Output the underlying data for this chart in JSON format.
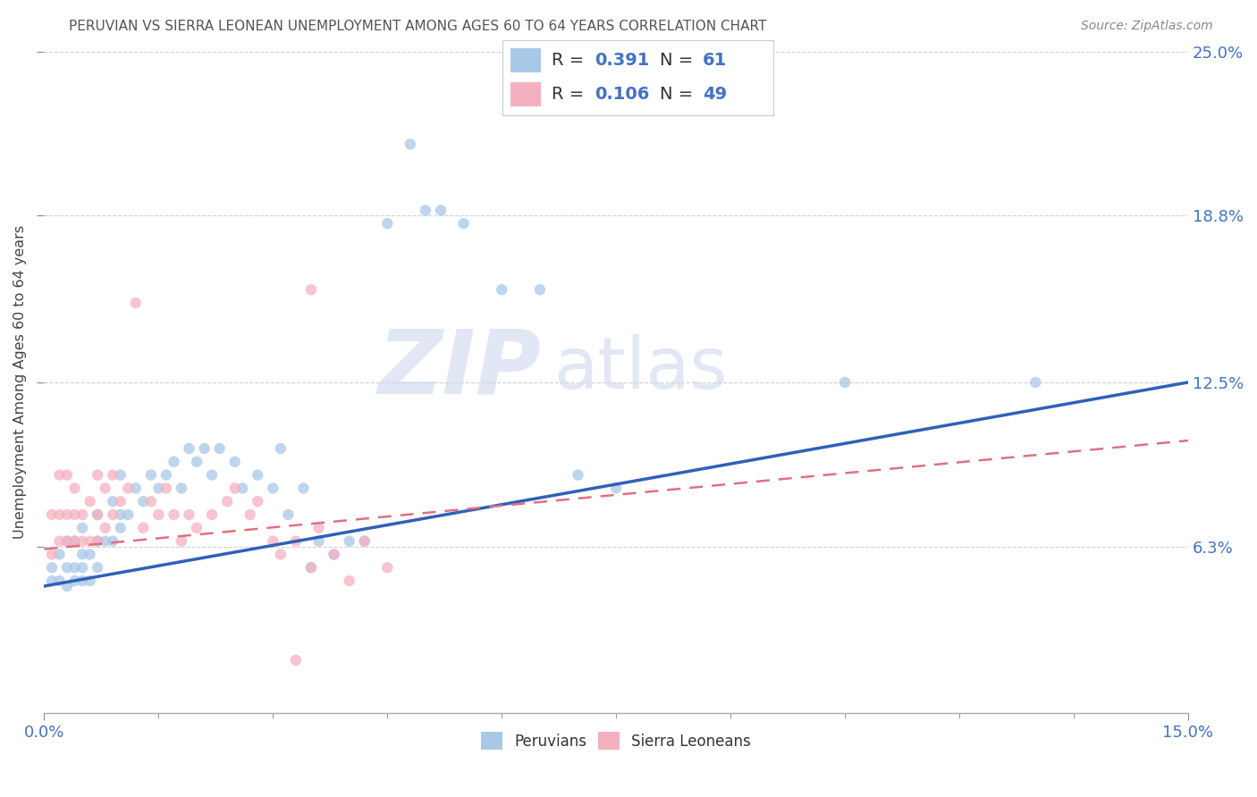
{
  "title": "PERUVIAN VS SIERRA LEONEAN UNEMPLOYMENT AMONG AGES 60 TO 64 YEARS CORRELATION CHART",
  "source": "Source: ZipAtlas.com",
  "ylabel": "Unemployment Among Ages 60 to 64 years",
  "xlim": [
    0.0,
    0.15
  ],
  "ylim": [
    0.0,
    0.25
  ],
  "xtick_positions": [
    0.0,
    0.15
  ],
  "xtick_labels": [
    "0.0%",
    "15.0%"
  ],
  "ytick_values": [
    0.063,
    0.125,
    0.188,
    0.25
  ],
  "ytick_labels": [
    "6.3%",
    "12.5%",
    "18.8%",
    "25.0%"
  ],
  "peruvian_color": "#a8c8e8",
  "sierra_color": "#f5b0c0",
  "peruvian_line_color": "#3060b8",
  "sierra_line_color": "#e07080",
  "R_peruvian": 0.391,
  "N_peruvian": 61,
  "R_sierra": 0.106,
  "N_sierra": 49,
  "label_peruvians": "Peruvians",
  "label_sierra": "Sierra Leoneans",
  "tick_label_color": "#4472c4",
  "title_color": "#555555",
  "source_color": "#888888",
  "background": "#ffffff",
  "grid_color": "#cccccc",
  "peruvian_x": [
    0.001,
    0.001,
    0.002,
    0.002,
    0.003,
    0.003,
    0.003,
    0.004,
    0.004,
    0.004,
    0.005,
    0.005,
    0.005,
    0.005,
    0.006,
    0.006,
    0.007,
    0.007,
    0.007,
    0.008,
    0.009,
    0.009,
    0.01,
    0.01,
    0.01,
    0.011,
    0.012,
    0.013,
    0.014,
    0.015,
    0.016,
    0.017,
    0.018,
    0.019,
    0.02,
    0.021,
    0.022,
    0.023,
    0.025,
    0.026,
    0.028,
    0.03,
    0.031,
    0.032,
    0.034,
    0.035,
    0.036,
    0.038,
    0.04,
    0.042,
    0.045,
    0.048,
    0.05,
    0.052,
    0.055,
    0.06,
    0.065,
    0.07,
    0.075,
    0.105,
    0.13
  ],
  "peruvian_y": [
    0.05,
    0.055,
    0.05,
    0.06,
    0.048,
    0.055,
    0.065,
    0.05,
    0.055,
    0.065,
    0.05,
    0.055,
    0.06,
    0.07,
    0.05,
    0.06,
    0.055,
    0.065,
    0.075,
    0.065,
    0.065,
    0.08,
    0.07,
    0.075,
    0.09,
    0.075,
    0.085,
    0.08,
    0.09,
    0.085,
    0.09,
    0.095,
    0.085,
    0.1,
    0.095,
    0.1,
    0.09,
    0.1,
    0.095,
    0.085,
    0.09,
    0.085,
    0.1,
    0.075,
    0.085,
    0.055,
    0.065,
    0.06,
    0.065,
    0.065,
    0.185,
    0.215,
    0.19,
    0.19,
    0.185,
    0.16,
    0.16,
    0.09,
    0.085,
    0.125,
    0.125
  ],
  "sierra_x": [
    0.001,
    0.001,
    0.002,
    0.002,
    0.002,
    0.003,
    0.003,
    0.003,
    0.004,
    0.004,
    0.004,
    0.005,
    0.005,
    0.006,
    0.006,
    0.007,
    0.007,
    0.007,
    0.008,
    0.008,
    0.009,
    0.009,
    0.01,
    0.011,
    0.012,
    0.013,
    0.014,
    0.015,
    0.016,
    0.017,
    0.018,
    0.019,
    0.02,
    0.022,
    0.024,
    0.025,
    0.027,
    0.028,
    0.03,
    0.031,
    0.033,
    0.035,
    0.036,
    0.038,
    0.04,
    0.042,
    0.045,
    0.035,
    0.033
  ],
  "sierra_y": [
    0.06,
    0.075,
    0.065,
    0.075,
    0.09,
    0.065,
    0.075,
    0.09,
    0.065,
    0.075,
    0.085,
    0.065,
    0.075,
    0.065,
    0.08,
    0.065,
    0.075,
    0.09,
    0.07,
    0.085,
    0.075,
    0.09,
    0.08,
    0.085,
    0.155,
    0.07,
    0.08,
    0.075,
    0.085,
    0.075,
    0.065,
    0.075,
    0.07,
    0.075,
    0.08,
    0.085,
    0.075,
    0.08,
    0.065,
    0.06,
    0.065,
    0.055,
    0.07,
    0.06,
    0.05,
    0.065,
    0.055,
    0.16,
    0.02
  ],
  "peru_line_x0": 0.0,
  "peru_line_y0": 0.048,
  "peru_line_x1": 0.15,
  "peru_line_y1": 0.125,
  "sierra_line_x0": 0.0,
  "sierra_line_y0": 0.062,
  "sierra_line_x1": 0.15,
  "sierra_line_y1": 0.103
}
